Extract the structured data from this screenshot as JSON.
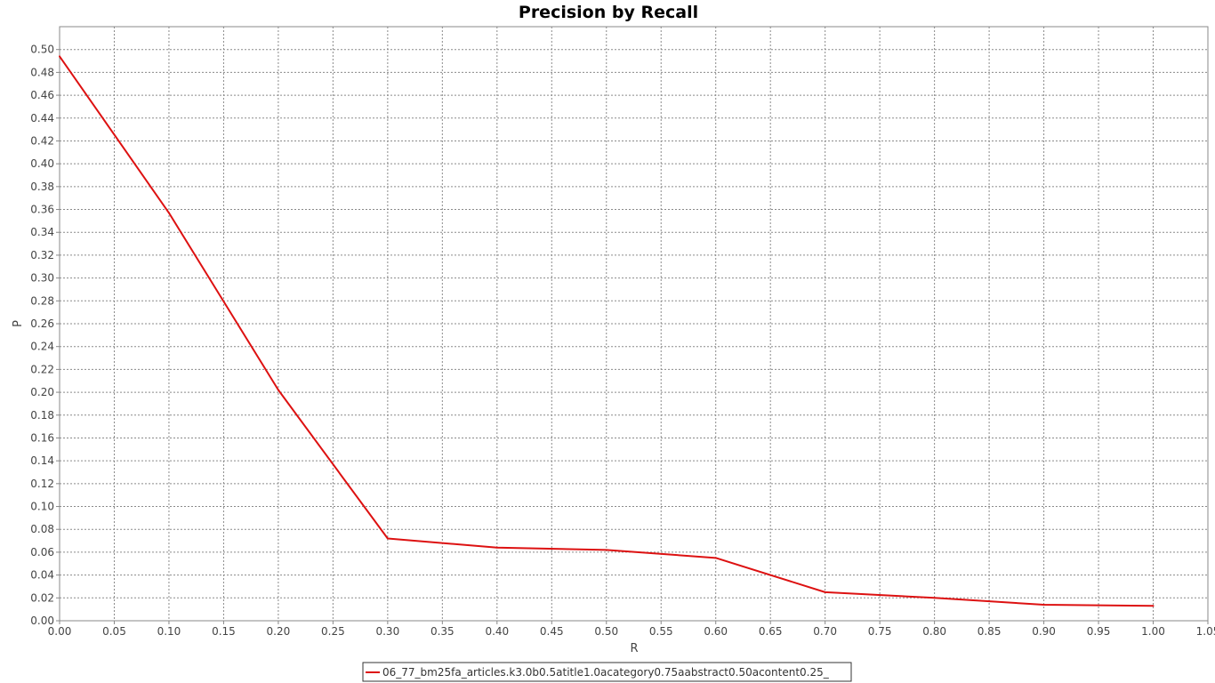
{
  "chart_data": {
    "type": "line",
    "title": "Precision by Recall",
    "xlabel": "R",
    "ylabel": "P",
    "xlim": [
      0.0,
      1.05
    ],
    "ylim": [
      0.0,
      0.52
    ],
    "x_ticks": [
      "0.00",
      "0.05",
      "0.10",
      "0.15",
      "0.20",
      "0.25",
      "0.30",
      "0.35",
      "0.40",
      "0.45",
      "0.50",
      "0.55",
      "0.60",
      "0.65",
      "0.70",
      "0.75",
      "0.80",
      "0.85",
      "0.90",
      "0.95",
      "1.00",
      "1.05"
    ],
    "y_ticks": [
      "0.00",
      "0.02",
      "0.04",
      "0.06",
      "0.08",
      "0.10",
      "0.12",
      "0.14",
      "0.16",
      "0.18",
      "0.20",
      "0.22",
      "0.24",
      "0.26",
      "0.28",
      "0.30",
      "0.32",
      "0.34",
      "0.36",
      "0.38",
      "0.40",
      "0.42",
      "0.44",
      "0.46",
      "0.48",
      "0.50"
    ],
    "grid": true,
    "legend_position": "bottom-center",
    "series": [
      {
        "name": "06_77_bm25fa_articles.k3.0b0.5atitle1.0acategory0.75aabstract0.50acontent0.25_",
        "color": "#dd1111",
        "x": [
          0.0,
          0.1,
          0.2,
          0.3,
          0.4,
          0.5,
          0.6,
          0.7,
          0.8,
          0.9,
          1.0
        ],
        "y": [
          0.494,
          0.357,
          0.202,
          0.072,
          0.064,
          0.062,
          0.055,
          0.025,
          0.02,
          0.014,
          0.013
        ]
      }
    ]
  }
}
